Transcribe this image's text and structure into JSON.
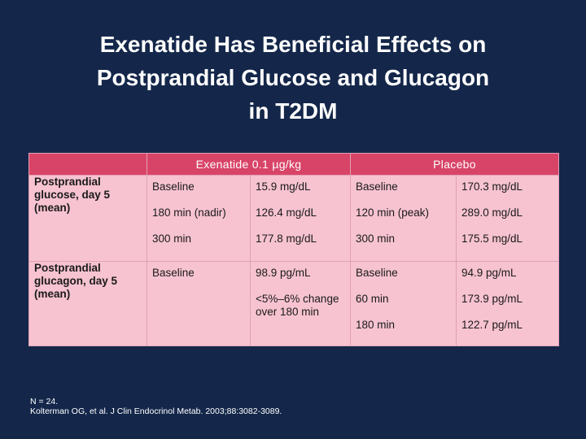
{
  "title": {
    "line1": "Exenatide Has Beneficial Effects on",
    "line2": "Postprandial Glucose and Glucagon",
    "line3": "in T2DM"
  },
  "table": {
    "header": {
      "blank": "",
      "exenatide": "Exenatide 0.1 µg/kg",
      "placebo": "Placebo"
    },
    "rows": [
      {
        "label": "Postprandial glucose, day 5 (mean)",
        "exenatide_times": [
          "Baseline",
          "180 min (nadir)",
          "300 min"
        ],
        "exenatide_values": [
          "15.9 mg/dL",
          "126.4 mg/dL",
          "177.8 mg/dL"
        ],
        "placebo_times": [
          "Baseline",
          "120 min (peak)",
          "300 min"
        ],
        "placebo_values": [
          "170.3 mg/dL",
          "289.0 mg/dL",
          "175.5 mg/dL"
        ]
      },
      {
        "label": "Postprandial glucagon, day 5 (mean)",
        "exenatide_times": [
          "Baseline"
        ],
        "exenatide_values": [
          "98.9 pg/mL",
          "<5%–6% change over 180 min"
        ],
        "placebo_times": [
          "Baseline",
          "60 min",
          "180 min"
        ],
        "placebo_values": [
          "94.9 pg/mL",
          "173.9 pg/mL",
          "122.7 pg/mL"
        ]
      }
    ]
  },
  "footnote": {
    "line1": "N = 24.",
    "line2": "Kolterman OG, et al. J Clin Endocrinol Metab. 2003;88:3082-3089."
  },
  "colors": {
    "background": "#14274a",
    "header_fill": "#d84468",
    "cell_fill": "#f7c3d1",
    "border": "#e2a0b2"
  }
}
